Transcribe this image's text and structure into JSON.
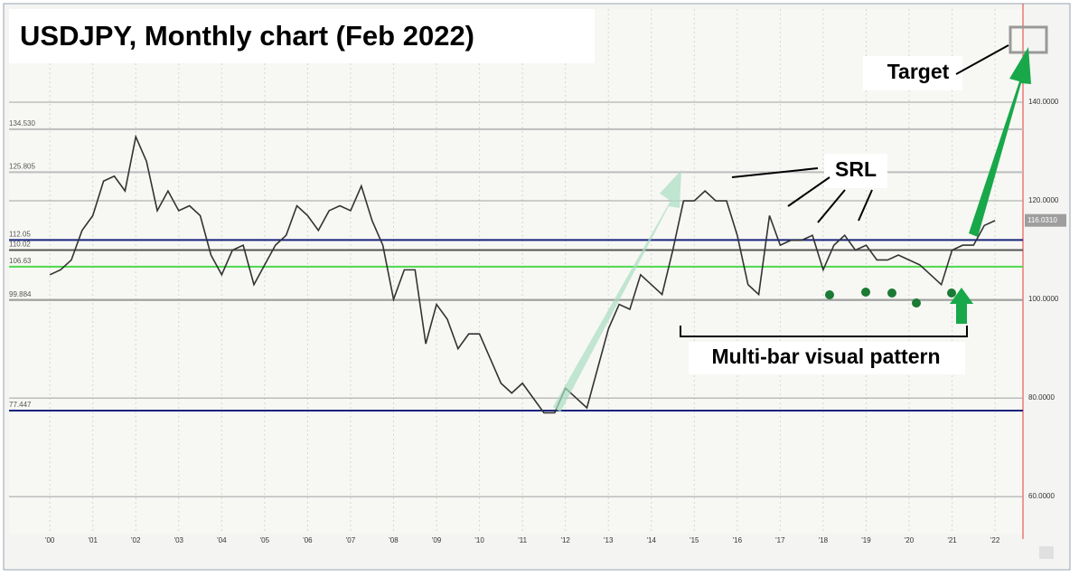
{
  "chart_data": {
    "type": "line",
    "title": "USDJPY, Monthly chart (Feb 2022)",
    "annotations": [
      "Target",
      "SRL",
      "Multi-bar visual pattern"
    ],
    "x": [
      2000.0,
      2000.25,
      2000.5,
      2000.75,
      2001.0,
      2001.25,
      2001.5,
      2001.75,
      2002.0,
      2002.25,
      2002.5,
      2002.75,
      2003.0,
      2003.25,
      2003.5,
      2003.75,
      2004.0,
      2004.25,
      2004.5,
      2004.75,
      2005.0,
      2005.25,
      2005.5,
      2005.75,
      2006.0,
      2006.25,
      2006.5,
      2006.75,
      2007.0,
      2007.25,
      2007.5,
      2007.75,
      2008.0,
      2008.25,
      2008.5,
      2008.75,
      2009.0,
      2009.25,
      2009.5,
      2009.75,
      2010.0,
      2010.25,
      2010.5,
      2010.75,
      2011.0,
      2011.25,
      2011.5,
      2011.75,
      2012.0,
      2012.25,
      2012.5,
      2012.75,
      2013.0,
      2013.25,
      2013.5,
      2013.75,
      2014.0,
      2014.25,
      2014.5,
      2014.75,
      2015.0,
      2015.25,
      2015.5,
      2015.75,
      2016.0,
      2016.25,
      2016.5,
      2016.75,
      2017.0,
      2017.25,
      2017.5,
      2017.75,
      2018.0,
      2018.25,
      2018.5,
      2018.75,
      2019.0,
      2019.25,
      2019.5,
      2019.75,
      2020.0,
      2020.25,
      2020.5,
      2020.75,
      2021.0,
      2021.25,
      2021.5,
      2021.75,
      2022.0
    ],
    "series": [
      {
        "color": "#333333",
        "values": [
          105,
          106,
          108,
          114,
          117,
          124,
          125,
          122,
          133,
          128,
          118,
          122,
          118,
          119,
          117,
          109,
          105,
          110,
          111,
          103,
          107,
          111,
          113,
          119,
          117,
          114,
          118,
          119,
          118,
          123,
          116,
          111,
          100,
          106,
          106,
          91,
          99,
          96,
          90,
          93,
          93,
          88,
          83,
          81,
          83,
          80,
          77,
          77,
          82,
          80,
          78,
          86,
          94,
          99,
          98,
          105,
          103,
          101,
          110,
          120,
          120,
          122,
          120,
          120,
          113,
          103,
          101,
          117,
          111,
          112,
          112,
          113,
          106,
          111,
          113,
          110,
          111,
          108,
          108,
          109,
          108,
          107,
          105,
          103,
          110,
          111,
          111,
          115,
          116
        ]
      }
    ],
    "levels": [
      {
        "value": 134.53,
        "label": "134.530",
        "color": "#bdbdbd"
      },
      {
        "value": 125.805,
        "label": "125.805",
        "color": "#bdbdbd"
      },
      {
        "value": 112.05,
        "label": "112.05",
        "color": "#1a237e"
      },
      {
        "value": 110.02,
        "label": "110.02",
        "color": "#555555"
      },
      {
        "value": 106.63,
        "label": "106.63",
        "color": "#4cd94c"
      },
      {
        "value": 99.884,
        "label": "99.884",
        "color": "#9e9e9e"
      },
      {
        "value": 77.447,
        "label": "77.447",
        "color": "#1a237e"
      }
    ],
    "last_price": {
      "value": 116.031,
      "label": "116.0310"
    },
    "xlim": [
      1999.05,
      2022.65
    ],
    "ylim": [
      52.5,
      158.9
    ],
    "yticks": [
      {
        "value": 60,
        "label": "60.0000"
      },
      {
        "value": 80,
        "label": "80.0000"
      },
      {
        "value": 100,
        "label": "100.0000"
      },
      {
        "value": 120,
        "label": "120.0000"
      },
      {
        "value": 140,
        "label": "140.0000"
      }
    ],
    "xticks": [
      {
        "value": 2000,
        "label": "'00"
      },
      {
        "value": 2001,
        "label": "'01"
      },
      {
        "value": 2002,
        "label": "'02"
      },
      {
        "value": 2003,
        "label": "'03"
      },
      {
        "value": 2004,
        "label": "'04"
      },
      {
        "value": 2005,
        "label": "'05"
      },
      {
        "value": 2006,
        "label": "'06"
      },
      {
        "value": 2007,
        "label": "'07"
      },
      {
        "value": 2008,
        "label": "'08"
      },
      {
        "value": 2009,
        "label": "'09"
      },
      {
        "value": 2010,
        "label": "'10"
      },
      {
        "value": 2011,
        "label": "'11"
      },
      {
        "value": 2012,
        "label": "'12"
      },
      {
        "value": 2013,
        "label": "'13"
      },
      {
        "value": 2014,
        "label": "'14"
      },
      {
        "value": 2015,
        "label": "'15"
      },
      {
        "value": 2016,
        "label": "'16"
      },
      {
        "value": 2017,
        "label": "'17"
      },
      {
        "value": 2018,
        "label": "'18"
      },
      {
        "value": 2019,
        "label": "'19"
      },
      {
        "value": 2020,
        "label": "'20"
      },
      {
        "value": 2021,
        "label": "'21"
      },
      {
        "value": 2022,
        "label": "'22"
      }
    ],
    "grid": true
  }
}
